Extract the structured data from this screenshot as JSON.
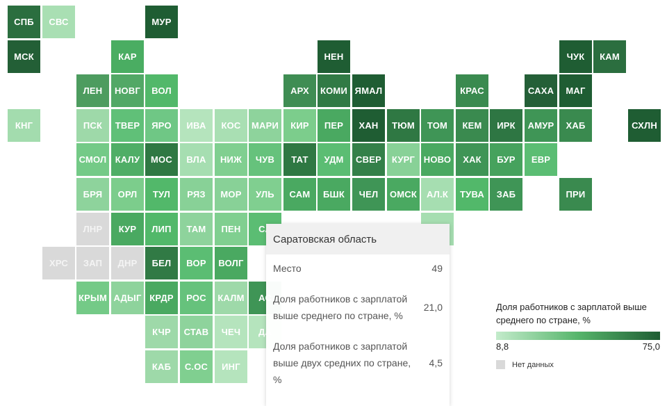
{
  "regions": [
    {
      "code": "СПБ",
      "c": 0,
      "r": 0,
      "color": "#2b6e3f"
    },
    {
      "code": "СВС",
      "c": 1,
      "r": 0,
      "color": "#a9dfb3"
    },
    {
      "code": "МУР",
      "c": 4,
      "r": 0,
      "color": "#1f5d33"
    },
    {
      "code": "МСК",
      "c": 0,
      "r": 1,
      "color": "#235f36"
    },
    {
      "code": "КАР",
      "c": 3,
      "r": 1,
      "color": "#4aad62"
    },
    {
      "code": "НЕН",
      "c": 9,
      "r": 1,
      "color": "#1f5d33"
    },
    {
      "code": "ЧУК",
      "c": 16,
      "r": 1,
      "color": "#1f5d33"
    },
    {
      "code": "КАМ",
      "c": 17,
      "r": 1,
      "color": "#2b6e3f"
    },
    {
      "code": "ЛЕН",
      "c": 2,
      "r": 2,
      "color": "#4d9c5f"
    },
    {
      "code": "НОВГ",
      "c": 3,
      "r": 2,
      "color": "#52a866"
    },
    {
      "code": "ВОЛ",
      "c": 4,
      "r": 2,
      "color": "#52b86a"
    },
    {
      "code": "АРХ",
      "c": 8,
      "r": 2,
      "color": "#3f8d53"
    },
    {
      "code": "КОМИ",
      "c": 9,
      "r": 2,
      "color": "#317a45"
    },
    {
      "code": "ЯМАЛ",
      "c": 10,
      "r": 2,
      "color": "#1f5d33"
    },
    {
      "code": "КРАС",
      "c": 13,
      "r": 2,
      "color": "#3a8a4f"
    },
    {
      "code": "САХА",
      "c": 15,
      "r": 2,
      "color": "#245f37"
    },
    {
      "code": "МАГ",
      "c": 16,
      "r": 2,
      "color": "#1f5d33"
    },
    {
      "code": "КНГ",
      "c": 0,
      "r": 3,
      "color": "#a3dcae"
    },
    {
      "code": "ПСК",
      "c": 2,
      "r": 3,
      "color": "#9ed9a9"
    },
    {
      "code": "ТВЕР",
      "c": 3,
      "r": 3,
      "color": "#60c078"
    },
    {
      "code": "ЯРО",
      "c": 4,
      "r": 3,
      "color": "#6fc785"
    },
    {
      "code": "ИВА",
      "c": 5,
      "r": 3,
      "color": "#b5e4bd"
    },
    {
      "code": "КОС",
      "c": 6,
      "r": 3,
      "color": "#a9dfb3"
    },
    {
      "code": "МАРИ",
      "c": 7,
      "r": 3,
      "color": "#8ed39c"
    },
    {
      "code": "КИР",
      "c": 8,
      "r": 3,
      "color": "#7ccd8c"
    },
    {
      "code": "ПЕР",
      "c": 9,
      "r": 3,
      "color": "#4aa961"
    },
    {
      "code": "ХАН",
      "c": 10,
      "r": 3,
      "color": "#1f5d33"
    },
    {
      "code": "ТЮМ",
      "c": 11,
      "r": 3,
      "color": "#2f7843"
    },
    {
      "code": "ТОМ",
      "c": 12,
      "r": 3,
      "color": "#3f9556"
    },
    {
      "code": "КЕМ",
      "c": 13,
      "r": 3,
      "color": "#3a8a4f"
    },
    {
      "code": "ИРК",
      "c": 14,
      "r": 3,
      "color": "#2e7643"
    },
    {
      "code": "АМУР",
      "c": 15,
      "r": 3,
      "color": "#3f9556"
    },
    {
      "code": "ХАБ",
      "c": 16,
      "r": 3,
      "color": "#3a8a4f"
    },
    {
      "code": "СХЛН",
      "c": 18,
      "r": 3,
      "color": "#1f5d33"
    },
    {
      "code": "СМОЛ",
      "c": 2,
      "r": 4,
      "color": "#74ca87"
    },
    {
      "code": "КАЛУ",
      "c": 3,
      "r": 4,
      "color": "#4fae66"
    },
    {
      "code": "МОС",
      "c": 4,
      "r": 4,
      "color": "#2f7843"
    },
    {
      "code": "ВЛА",
      "c": 5,
      "r": 4,
      "color": "#a6deb1"
    },
    {
      "code": "НИЖ",
      "c": 6,
      "r": 4,
      "color": "#80cf90"
    },
    {
      "code": "ЧУВ",
      "c": 7,
      "r": 4,
      "color": "#66c27c"
    },
    {
      "code": "ТАТ",
      "c": 8,
      "r": 4,
      "color": "#2f7843"
    },
    {
      "code": "УДМ",
      "c": 9,
      "r": 4,
      "color": "#5bbd73"
    },
    {
      "code": "СВЕР",
      "c": 10,
      "r": 4,
      "color": "#348049"
    },
    {
      "code": "КУРГ",
      "c": 11,
      "r": 4,
      "color": "#88d197"
    },
    {
      "code": "НОВО",
      "c": 12,
      "r": 4,
      "color": "#4aa961"
    },
    {
      "code": "ХАК",
      "c": 13,
      "r": 4,
      "color": "#3f9556"
    },
    {
      "code": "БУР",
      "c": 14,
      "r": 4,
      "color": "#46a25d"
    },
    {
      "code": "ЕВР",
      "c": 15,
      "r": 4,
      "color": "#5bbd73"
    },
    {
      "code": "БРЯ",
      "c": 2,
      "r": 5,
      "color": "#8ed39c"
    },
    {
      "code": "ОРЛ",
      "c": 3,
      "r": 5,
      "color": "#7ccd8c"
    },
    {
      "code": "ТУЛ",
      "c": 4,
      "r": 5,
      "color": "#52b86a"
    },
    {
      "code": "РЯЗ",
      "c": 5,
      "r": 5,
      "color": "#88d197"
    },
    {
      "code": "МОР",
      "c": 6,
      "r": 5,
      "color": "#88d197"
    },
    {
      "code": "УЛЬ",
      "c": 7,
      "r": 5,
      "color": "#80cf90"
    },
    {
      "code": "САМ",
      "c": 8,
      "r": 5,
      "color": "#4aa961"
    },
    {
      "code": "БШК",
      "c": 9,
      "r": 5,
      "color": "#4aa961"
    },
    {
      "code": "ЧЕЛ",
      "c": 10,
      "r": 5,
      "color": "#3f9556"
    },
    {
      "code": "ОМСК",
      "c": 11,
      "r": 5,
      "color": "#4aa961"
    },
    {
      "code": "АЛ.К",
      "c": 12,
      "r": 5,
      "color": "#a6deb1",
      "hl": true
    },
    {
      "code": "ТУВА",
      "c": 13,
      "r": 5,
      "color": "#52b86a"
    },
    {
      "code": "ЗАБ",
      "c": 14,
      "r": 5,
      "color": "#3f9556"
    },
    {
      "code": "ПРИ",
      "c": 16,
      "r": 5,
      "color": "#3a8a4f"
    },
    {
      "code": "ЛНР",
      "c": 2,
      "r": 6,
      "color": "#d9d9d9",
      "nodata": true
    },
    {
      "code": "КУР",
      "c": 3,
      "r": 6,
      "color": "#4aa961"
    },
    {
      "code": "ЛИП",
      "c": 4,
      "r": 6,
      "color": "#52b86a"
    },
    {
      "code": "ТАМ",
      "c": 5,
      "r": 6,
      "color": "#8ed39c"
    },
    {
      "code": "ПЕН",
      "c": 6,
      "r": 6,
      "color": "#80cf90"
    },
    {
      "code": "СА",
      "c": 7,
      "r": 6,
      "color": "#5bbd73"
    },
    {
      "code": "",
      "c": 12,
      "r": 6,
      "color": "#a6deb1"
    },
    {
      "code": "ХРС",
      "c": 1,
      "r": 7,
      "color": "#d9d9d9",
      "nodata": true
    },
    {
      "code": "ЗАП",
      "c": 2,
      "r": 7,
      "color": "#d9d9d9",
      "nodata": true
    },
    {
      "code": "ДНР",
      "c": 3,
      "r": 7,
      "color": "#d9d9d9",
      "nodata": true
    },
    {
      "code": "БЕЛ",
      "c": 4,
      "r": 7,
      "color": "#317a45"
    },
    {
      "code": "ВОР",
      "c": 5,
      "r": 7,
      "color": "#5bbd73"
    },
    {
      "code": "ВОЛГ",
      "c": 6,
      "r": 7,
      "color": "#4aa961"
    },
    {
      "code": "КРЫМ",
      "c": 2,
      "r": 8,
      "color": "#74ca87"
    },
    {
      "code": "АДЫГ",
      "c": 3,
      "r": 8,
      "color": "#8ed39c"
    },
    {
      "code": "КРДР",
      "c": 4,
      "r": 8,
      "color": "#4aa961"
    },
    {
      "code": "РОС",
      "c": 5,
      "r": 8,
      "color": "#66c27c"
    },
    {
      "code": "КАЛМ",
      "c": 6,
      "r": 8,
      "color": "#9ed9a9"
    },
    {
      "code": "АС",
      "c": 7,
      "r": 8,
      "color": "#3f9556"
    },
    {
      "code": "КЧР",
      "c": 4,
      "r": 9,
      "color": "#9ed9a9"
    },
    {
      "code": "СТАВ",
      "c": 5,
      "r": 9,
      "color": "#8ed39c"
    },
    {
      "code": "ЧЕЧ",
      "c": 6,
      "r": 9,
      "color": "#b5e4bd"
    },
    {
      "code": "ДА",
      "c": 7,
      "r": 9,
      "color": "#b5e4bd"
    },
    {
      "code": "КАБ",
      "c": 4,
      "r": 10,
      "color": "#9ed9a9"
    },
    {
      "code": "С.ОС",
      "c": 5,
      "r": 10,
      "color": "#80cf90"
    },
    {
      "code": "ИНГ",
      "c": 6,
      "r": 10,
      "color": "#b5e4bd"
    }
  ],
  "tooltip": {
    "title": "Саратовская область",
    "rows": [
      {
        "label": "Место",
        "value": "49"
      },
      {
        "label": "Доля работников с зарплатой выше среднего по стране, %",
        "value": "21,0"
      },
      {
        "label": "Доля работников с зарплатой выше двух средних по стране, %",
        "value": "4,5"
      }
    ]
  },
  "legend": {
    "title": "Доля работников с зарплатой выше среднего по стране, %",
    "min_label": "8,8",
    "max_label": "75,0",
    "colors": {
      "low": "#c3ebcb",
      "mid": "#56b56b",
      "high": "#1f5d33",
      "nodata": "#d9d9d9"
    },
    "nodata_label": "Нет данных"
  }
}
